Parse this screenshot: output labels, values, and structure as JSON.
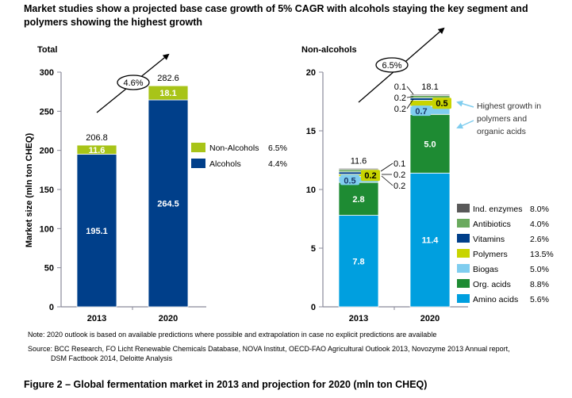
{
  "title": "Market studies show a projected base case growth of 5% CAGR with alcohols staying the key segment and polymers showing the highest growth",
  "note": "Note:   2020 outlook is based on available predictions where possible and extrapolation in case no explicit predictions are available",
  "source_line1": "Source: BCC Research, FO Licht Renewable Chemicals Database, NOVA Institut, OECD-FAO Agricultural Outlook 2013, Novozyme 2013 Annual report,",
  "source_line2": "DSM Factbook 2014, Deloitte Analysis",
  "caption": "Figure 2 – Global fermentation market in 2013 and projection for 2020 (mln ton CHEQ)",
  "chart_data": [
    {
      "type": "bar",
      "stacked": true,
      "title": "Total",
      "ylabel": "Market size (mln ton CHEQ)",
      "xlabel": "",
      "categories": [
        "2013",
        "2020"
      ],
      "ylim": [
        0,
        300
      ],
      "yticks": [
        0,
        50,
        100,
        150,
        200,
        250,
        300
      ],
      "grid": false,
      "legend_position": "right",
      "series": [
        {
          "name": "Alcohols",
          "cagr": "4.4%",
          "color": "#003f8a",
          "values": [
            195.1,
            264.5
          ]
        },
        {
          "name": "Non-Alcohols",
          "cagr": "6.5%",
          "color": "#a8c418",
          "values": [
            11.6,
            18.1
          ]
        }
      ],
      "totals": [
        "206.8",
        "282.6"
      ],
      "annotation": "4.6%"
    },
    {
      "type": "bar",
      "stacked": true,
      "title": "Non-alcohols",
      "xlabel": "",
      "ylabel": "",
      "categories": [
        "2013",
        "2020"
      ],
      "ylim": [
        0,
        20
      ],
      "yticks": [
        0,
        5,
        10,
        15,
        20
      ],
      "grid": false,
      "legend_position": "right",
      "series": [
        {
          "name": "Amino acids",
          "cagr": "5.6%",
          "color": "#009fdf",
          "values": [
            7.8,
            11.4
          ]
        },
        {
          "name": "Org. acids",
          "cagr": "8.8%",
          "color": "#1e8b33",
          "values": [
            2.8,
            5.0
          ]
        },
        {
          "name": "Biogas",
          "cagr": "5.0%",
          "color": "#7fcdef",
          "values": [
            0.5,
            0.7
          ]
        },
        {
          "name": "Polymers",
          "cagr": "13.5%",
          "color": "#c8d400",
          "values": [
            0.2,
            0.5
          ]
        },
        {
          "name": "Vitamins",
          "cagr": "2.6%",
          "color": "#003f8a",
          "values": [
            0.2,
            0.2
          ]
        },
        {
          "name": "Antibiotics",
          "cagr": "4.0%",
          "color": "#6aaa5e",
          "values": [
            0.2,
            0.2
          ]
        },
        {
          "name": "Ind. enzymes",
          "cagr": "8.0%",
          "color": "#595959",
          "values": [
            0.1,
            0.1
          ]
        }
      ],
      "totals": [
        "11.6",
        "18.1"
      ],
      "annotation": "6.5%",
      "callout": "Highest growth in polymers and organic acids"
    }
  ]
}
